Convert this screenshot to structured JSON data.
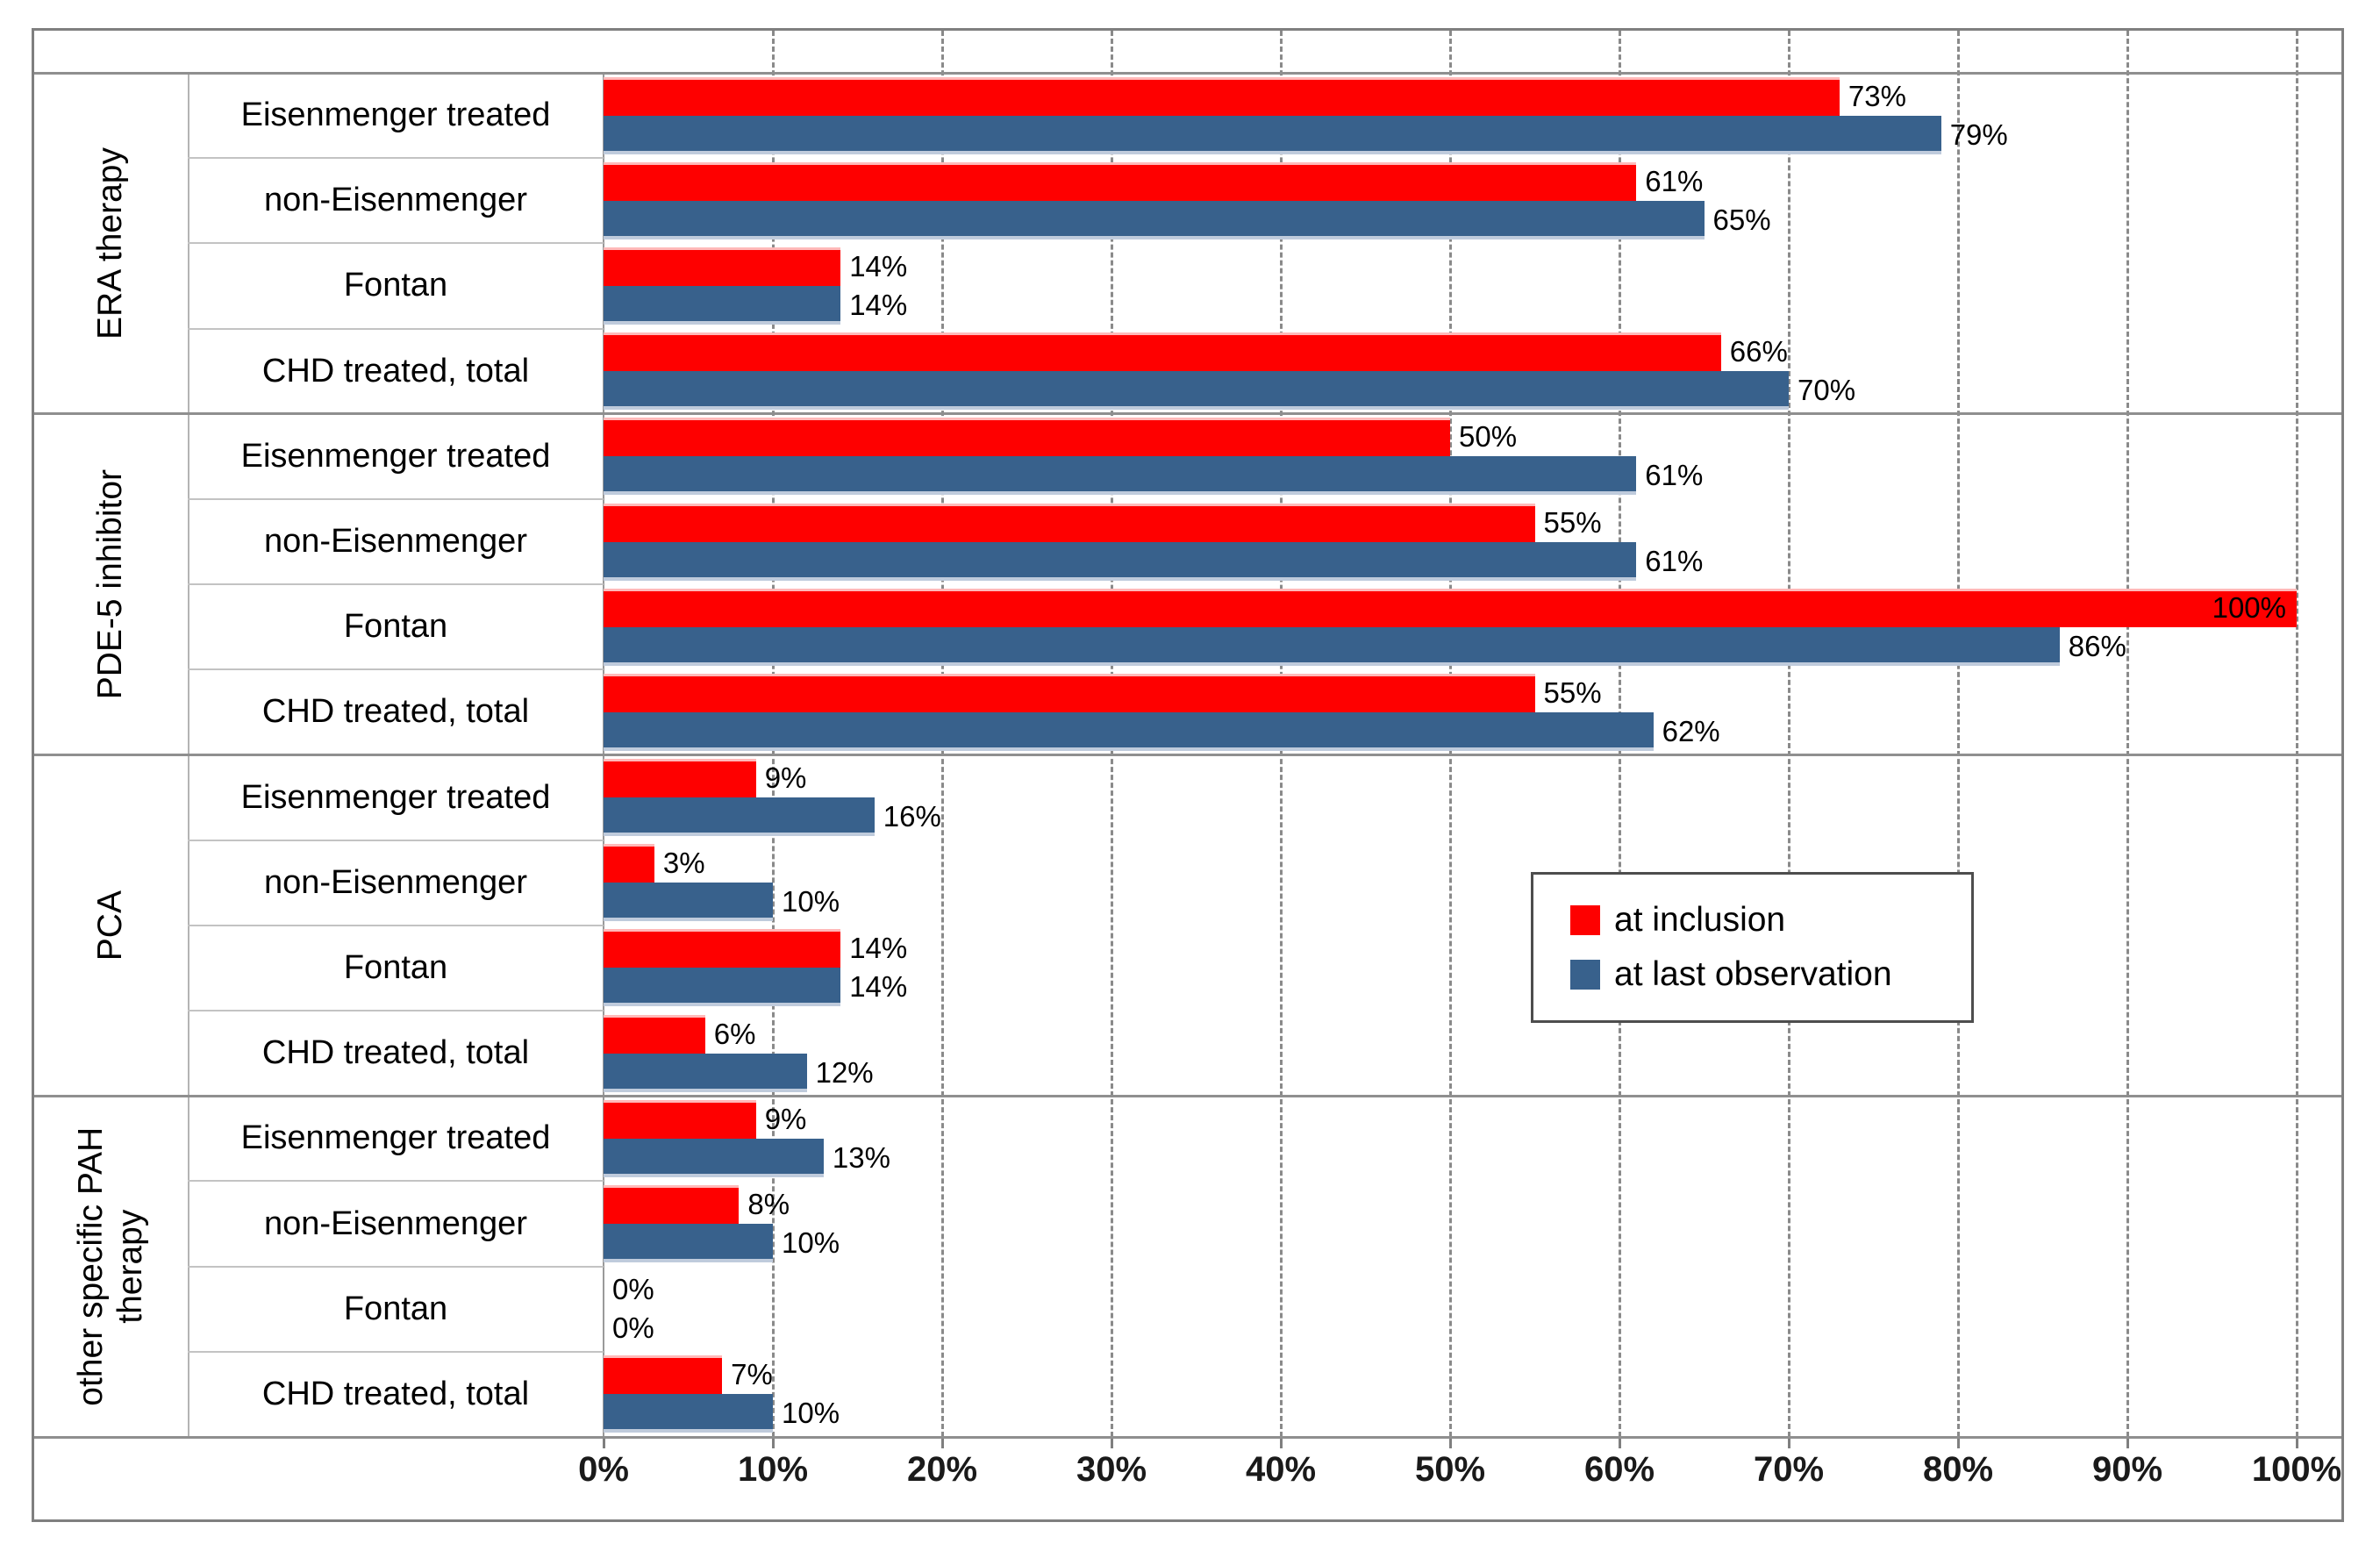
{
  "chart_data": {
    "type": "bar",
    "orientation": "horizontal",
    "value_suffix": "%",
    "series": [
      {
        "name": "at inclusion",
        "color": "#fe0000"
      },
      {
        "name": "at last observation",
        "color": "#38618c"
      }
    ],
    "groups": [
      {
        "label": "ERA therapy",
        "rows": [
          {
            "category": "Eisenmenger treated",
            "values": [
              73,
              79
            ],
            "labels": [
              "73%",
              "79%"
            ]
          },
          {
            "category": "non-Eisenmenger",
            "values": [
              61,
              65
            ],
            "labels": [
              "61%",
              "65%"
            ]
          },
          {
            "category": "Fontan",
            "values": [
              14,
              14
            ],
            "labels": [
              "14%",
              "14%"
            ]
          },
          {
            "category": "CHD treated, total",
            "values": [
              66,
              70
            ],
            "labels": [
              "66%",
              "70%"
            ]
          }
        ]
      },
      {
        "label": "PDE-5 inhibitor",
        "rows": [
          {
            "category": "Eisenmenger treated",
            "values": [
              50,
              61
            ],
            "labels": [
              "50%",
              "61%"
            ]
          },
          {
            "category": "non-Eisenmenger",
            "values": [
              55,
              61
            ],
            "labels": [
              "55%",
              "61%"
            ]
          },
          {
            "category": "Fontan",
            "values": [
              100,
              86
            ],
            "labels": [
              "100%",
              "86%"
            ]
          },
          {
            "category": "CHD treated, total",
            "values": [
              55,
              62
            ],
            "labels": [
              "55%",
              "62%"
            ]
          }
        ]
      },
      {
        "label": "PCA",
        "rows": [
          {
            "category": "Eisenmenger treated",
            "values": [
              9,
              16
            ],
            "labels": [
              "9%",
              "16%"
            ]
          },
          {
            "category": "non-Eisenmenger",
            "values": [
              3,
              10
            ],
            "labels": [
              "3%",
              "10%"
            ]
          },
          {
            "category": "Fontan",
            "values": [
              14,
              14
            ],
            "labels": [
              "14%",
              "14%"
            ]
          },
          {
            "category": "CHD treated, total",
            "values": [
              6,
              12
            ],
            "labels": [
              "6%",
              "12%"
            ]
          }
        ]
      },
      {
        "label": "other specific PAH therapy",
        "rows": [
          {
            "category": "Eisenmenger treated",
            "values": [
              9,
              13
            ],
            "labels": [
              "9%",
              "13%"
            ]
          },
          {
            "category": "non-Eisenmenger",
            "values": [
              8,
              10
            ],
            "labels": [
              "8%",
              "10%"
            ]
          },
          {
            "category": "Fontan",
            "values": [
              0,
              0
            ],
            "labels": [
              "0%",
              "0%"
            ]
          },
          {
            "category": "CHD treated, total",
            "values": [
              7,
              10
            ],
            "labels": [
              "7%",
              "10%"
            ]
          }
        ]
      }
    ],
    "x_axis": {
      "min": 0,
      "max": 100,
      "tick_step": 10,
      "tick_labels": [
        "0%",
        "10%",
        "20%",
        "30%",
        "40%",
        "50%",
        "60%",
        "70%",
        "80%",
        "90%",
        "100%"
      ],
      "gridlines": "dashed-vertical"
    },
    "legend": {
      "position": "center-right",
      "entries": [
        "at inclusion",
        "at last observation"
      ]
    }
  }
}
